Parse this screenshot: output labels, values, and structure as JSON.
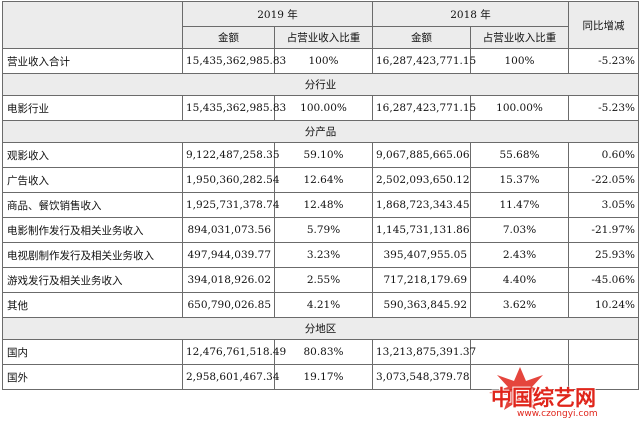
{
  "header": {
    "y2019": "2019 年",
    "y2018": "2018 年",
    "yoy": "同比增减",
    "amount_2019": "金额",
    "ratio_2019": "占营业收入比重",
    "amount_2018": "金额",
    "ratio_2018": "占营业收入比重"
  },
  "total": {
    "label": "营业收入合计",
    "amt2019": "15,435,362,985.83",
    "pct2019": "100%",
    "amt2018": "16,287,423,771.15",
    "pct2018": "100%",
    "yoy": "-5.23%"
  },
  "sections": {
    "industry": "分行业",
    "product": "分产品",
    "region": "分地区"
  },
  "industry_rows": [
    {
      "label": "电影行业",
      "amt2019": "15,435,362,985.83",
      "pct2019": "100.00%",
      "amt2018": "16,287,423,771.15",
      "pct2018": "100.00%",
      "yoy": "-5.23%"
    }
  ],
  "product_rows": [
    {
      "label": "观影收入",
      "amt2019": "9,122,487,258.35",
      "pct2019": "59.10%",
      "amt2018": "9,067,885,665.06",
      "pct2018": "55.68%",
      "yoy": "0.60%"
    },
    {
      "label": "广告收入",
      "amt2019": "1,950,360,282.54",
      "pct2019": "12.64%",
      "amt2018": "2,502,093,650.12",
      "pct2018": "15.37%",
      "yoy": "-22.05%"
    },
    {
      "label": "商品、餐饮销售收入",
      "amt2019": "1,925,731,378.74",
      "pct2019": "12.48%",
      "amt2018": "1,868,723,343.45",
      "pct2018": "11.47%",
      "yoy": "3.05%"
    },
    {
      "label": "电影制作发行及相关业务收入",
      "amt2019": "894,031,073.56",
      "pct2019": "5.79%",
      "amt2018": "1,145,731,131.86",
      "pct2018": "7.03%",
      "yoy": "-21.97%"
    },
    {
      "label": "电视剧制作发行及相关业务收入",
      "amt2019": "497,944,039.77",
      "pct2019": "3.23%",
      "amt2018": "395,407,955.05",
      "pct2018": "2.43%",
      "yoy": "25.93%"
    },
    {
      "label": "游戏发行及相关业务收入",
      "amt2019": "394,018,926.02",
      "pct2019": "2.55%",
      "amt2018": "717,218,179.69",
      "pct2018": "4.40%",
      "yoy": "-45.06%"
    },
    {
      "label": "其他",
      "amt2019": "650,790,026.85",
      "pct2019": "4.21%",
      "amt2018": "590,363,845.92",
      "pct2018": "3.62%",
      "yoy": "10.24%"
    }
  ],
  "region_rows": [
    {
      "label": "国内",
      "amt2019": "12,476,761,518.49",
      "pct2019": "80.83%",
      "amt2018": "13,213,875,391.37",
      "pct2018": "",
      "yoy": ""
    },
    {
      "label": "国外",
      "amt2019": "2,958,601,467.34",
      "pct2019": "19.17%",
      "amt2018": "3,073,548,379.78",
      "pct2018": "",
      "yoy": ""
    }
  ],
  "watermark": {
    "text": "中国综艺网",
    "url": "www.czongyi.com",
    "color": "#e0251b"
  }
}
